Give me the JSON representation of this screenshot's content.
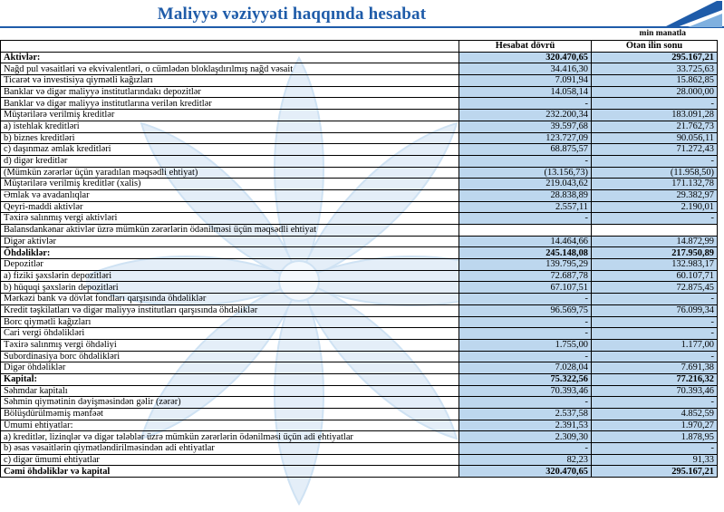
{
  "header": {
    "title": "Maliyyə vəziyyəti haqqında hesabat",
    "unit_note": "min manatla"
  },
  "table": {
    "column_headers": {
      "indicator": "",
      "current": "Hesabat dövrü",
      "previous": "Ötən ilin sonu"
    },
    "rows": [
      {
        "label": "Aktivlər:",
        "current": "320.470,65",
        "previous": "295.167,21",
        "bold": true
      },
      {
        "label": "Nağd pul vəsaitləri və  ekvivalentləri, o cümlədən bloklaşdırılmış nağd vəsait",
        "current": "34.416,30",
        "previous": "33.725,63"
      },
      {
        "label": "Ticarət və investisiya qiymətli kağızları",
        "current": "7.091,94",
        "previous": "15.862,85"
      },
      {
        "label": "Banklar və digər maliyyə institutlarındakı depozitlər",
        "current": "14.058,14",
        "previous": "28.000,00"
      },
      {
        "label": "Banklar və digər maliyyə institutlarına verilən kreditlər",
        "current": "-",
        "previous": "-"
      },
      {
        "label": "Müştərilərə verilmiş kreditlər",
        "current": "232.200,34",
        "previous": "183.091,28"
      },
      {
        "label": "a) istehlak kreditləri",
        "current": "39.597,68",
        "previous": "21.762,73"
      },
      {
        "label": "b) biznes kreditləri",
        "current": "123.727,09",
        "previous": "90.056,11"
      },
      {
        "label": "c) daşınmaz əmlak kreditləri",
        "current": "68.875,57",
        "previous": "71.272,43"
      },
      {
        "label": "d) digər kreditlər",
        "current": "-",
        "previous": "-"
      },
      {
        "label": "(Mümkün zərərlər üçün yaradılan məqsədli ehtiyat)",
        "current": "(13.156,73)",
        "previous": "(11.958,50)"
      },
      {
        "label": "Müştərilərə verilmiş kreditlər (xalis)",
        "current": "219.043,62",
        "previous": "171.132,78"
      },
      {
        "label": "Əmlak və avadanlıqlar",
        "current": "28.838,89",
        "previous": "29.382,97"
      },
      {
        "label": "Qeyri-maddi aktivlər",
        "current": "2.557,11",
        "previous": "2.190,01"
      },
      {
        "label": "Təxirə salınmış vergi aktivləri",
        "current": "-",
        "previous": "-"
      },
      {
        "label": "Balansdankənar aktivlər üzrə mümkün zərərlərin ödənilməsi üçün məqsədli ehtiyat",
        "current": "",
        "previous": "",
        "blank": true
      },
      {
        "label": "Digər aktivlər",
        "current": "14.464,66",
        "previous": "14.872,99"
      },
      {
        "label": "Öhdəliklər:",
        "current": "245.148,08",
        "previous": "217.950,89",
        "bold": true
      },
      {
        "label": "Depozitlər",
        "current": "139.795,29",
        "previous": "132.983,17"
      },
      {
        "label": "a) fiziki şəxslərin depozitləri",
        "current": "72.687,78",
        "previous": "60.107,71"
      },
      {
        "label": "b) hüquqi şəxslərin depozitləri",
        "current": "67.107,51",
        "previous": "72.875,45"
      },
      {
        "label": "Mərkəzi bank və dövlət fondları qarşısında öhdəliklər",
        "current": "-",
        "previous": "-"
      },
      {
        "label": "Kredit təşkilatları və digər maliyyə institutları qarşısında öhdəliklər",
        "current": "96.569,75",
        "previous": "76.099,34"
      },
      {
        "label": "Borc qiymətli kağızları",
        "current": "-",
        "previous": "-"
      },
      {
        "label": "Cari vergi öhdəlikləri",
        "current": "-",
        "previous": "-"
      },
      {
        "label": "Təxirə salınmış vergi öhdəliyi",
        "current": "1.755,00",
        "previous": "1.177,00"
      },
      {
        "label": "Subordinasiya borc öhdəlikləri",
        "current": "-",
        "previous": "-"
      },
      {
        "label": "Digər öhdəliklər",
        "current": "7.028,04",
        "previous": "7.691,38"
      },
      {
        "label": "Kapital:",
        "current": "75.322,56",
        "previous": "77.216,32",
        "bold": true
      },
      {
        "label": "Səhmdar kapitalı",
        "current": "70.393,46",
        "previous": "70.393,46"
      },
      {
        "label": "Səhmin qiymətinin dəyişməsindən gəlir (zərər)",
        "current": "-",
        "previous": "-"
      },
      {
        "label": "Bölüşdürülməmiş mənfəət",
        "current": "2.537,58",
        "previous": "4.852,59"
      },
      {
        "label": "Ümumi ehtiyatlar:",
        "current": "2.391,53",
        "previous": "1.970,27"
      },
      {
        "label": "a) kreditlər, lizinqlər və digər tələblər üzrə mümkün zərərlərin ödənilməsi üçün adi ehtiyatlar",
        "current": "2.309,30",
        "previous": "1.878,95"
      },
      {
        "label": "b) əsas vəsaitlərin qiymətləndirilməsindən adi ehtiyatlar",
        "current": "-",
        "previous": "-"
      },
      {
        "label": "c) digər ümumi ehtiyatlar",
        "current": "82,23",
        "previous": "91,33"
      },
      {
        "label": "Cəmi öhdəliklər və kapital",
        "current": "320.470,65",
        "previous": "295.167,21",
        "bold": true
      }
    ]
  },
  "colors": {
    "accent": "#1F5CA9",
    "cell_fill": "#BDD7EE",
    "watermark_fill": "#E4EEF8",
    "watermark_stroke": "#CFE2F3"
  }
}
